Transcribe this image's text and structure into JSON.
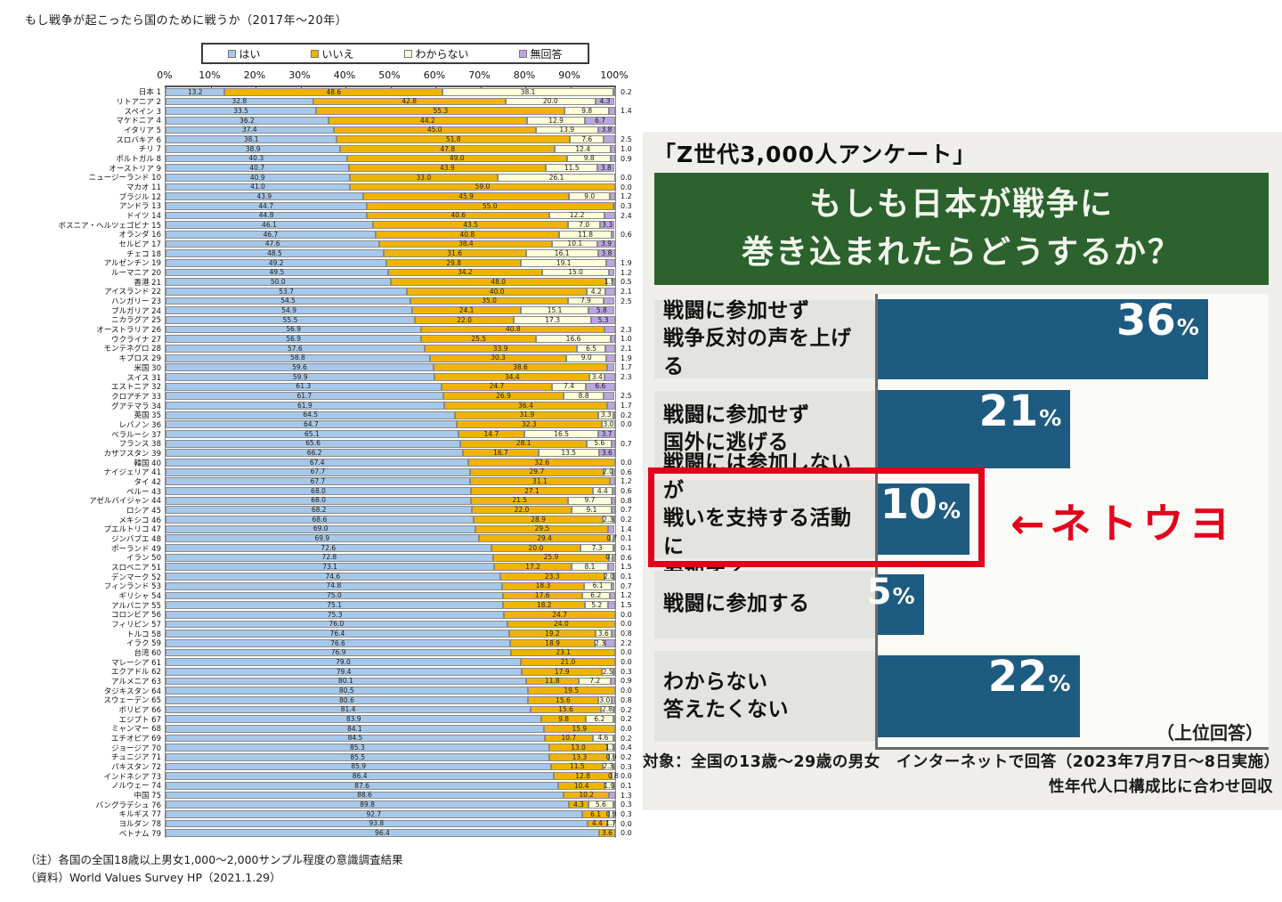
{
  "colors": {
    "yes": "#a6c8ea",
    "no": "#f0b400",
    "dk": "#ffffd9",
    "na": "#bca6e2",
    "segment_border": "#8a8a8a",
    "right_bar": "#1e5b80",
    "right_title_bg": "#2b622e",
    "right_title_text": "#f3f6ec",
    "highlight_red": "#e3001b",
    "label_block_bg": "#e3e3df",
    "bar_area_bg": "#fafaf7"
  },
  "chart_data": [
    {
      "id": "wvs-fight-for-country",
      "type": "bar",
      "orientation": "horizontal-stacked",
      "title": "もし戦争が起こったら国のために戦うか（2017年～20年）",
      "legend": [
        "はい",
        "いいえ",
        "わからない",
        "無回答"
      ],
      "legend_position": "top",
      "xlim": [
        0,
        100
      ],
      "x_ticks": [
        "0%",
        "10%",
        "20%",
        "30%",
        "40%",
        "50%",
        "60%",
        "70%",
        "80%",
        "90%",
        "100%"
      ],
      "columns": [
        "country",
        "rank",
        "yes",
        "no",
        "dk",
        "na_inside",
        "right_value"
      ],
      "rows": [
        [
          "日本",
          1,
          13.2,
          48.6,
          38.1,
          null,
          "0.2"
        ],
        [
          "リトアニア",
          2,
          32.8,
          42.8,
          20.0,
          4.3,
          ""
        ],
        [
          "スペイン",
          3,
          33.5,
          55.3,
          9.8,
          null,
          "1.4"
        ],
        [
          "マケドニア",
          4,
          36.2,
          44.2,
          12.9,
          6.7,
          ""
        ],
        [
          "イタリア",
          5,
          37.4,
          45.0,
          13.9,
          3.8,
          ""
        ],
        [
          "スロバキア",
          6,
          38.1,
          51.8,
          7.6,
          null,
          "2.5"
        ],
        [
          "チリ",
          7,
          38.9,
          47.8,
          12.4,
          null,
          "1.0"
        ],
        [
          "ポルトガル",
          8,
          40.3,
          49.0,
          9.8,
          null,
          "0.9"
        ],
        [
          "オーストリア",
          9,
          40.7,
          43.9,
          11.5,
          3.8,
          ""
        ],
        [
          "ニュージーランド",
          10,
          40.9,
          33.0,
          26.1,
          null,
          "0.0"
        ],
        [
          "マカオ",
          11,
          41.0,
          59.0,
          null,
          null,
          "0.0"
        ],
        [
          "ブラジル",
          12,
          43.9,
          45.9,
          9.0,
          null,
          "1.2"
        ],
        [
          "アンドラ",
          13,
          44.7,
          55.0,
          null,
          null,
          "0.3"
        ],
        [
          "ドイツ",
          14,
          44.8,
          40.6,
          12.2,
          null,
          "2.4"
        ],
        [
          "ボスニア・ヘルツェゴビナ",
          15,
          46.1,
          43.5,
          7.0,
          3.3,
          ""
        ],
        [
          "オランダ",
          16,
          46.7,
          40.8,
          11.8,
          null,
          "0.6"
        ],
        [
          "セルビア",
          17,
          47.6,
          38.4,
          10.1,
          3.9,
          ""
        ],
        [
          "チェコ",
          18,
          48.5,
          31.6,
          16.1,
          3.8,
          ""
        ],
        [
          "アルゼンチン",
          19,
          49.2,
          29.8,
          19.1,
          null,
          "1.9"
        ],
        [
          "ルーマニア",
          20,
          49.5,
          34.2,
          15.0,
          null,
          "1.2"
        ],
        [
          "香港",
          21,
          50.0,
          48.0,
          1.5,
          null,
          "0.5"
        ],
        [
          "アイスランド",
          22,
          53.7,
          40.0,
          4.2,
          null,
          "2.1"
        ],
        [
          "ハンガリー",
          23,
          54.5,
          35.0,
          7.9,
          null,
          "2.5"
        ],
        [
          "ブルガリア",
          24,
          54.9,
          24.1,
          15.1,
          5.8,
          ""
        ],
        [
          "ニカラグア",
          25,
          55.5,
          22.0,
          17.3,
          5.3,
          ""
        ],
        [
          "オーストラリア",
          26,
          56.9,
          40.8,
          null,
          null,
          "2.3"
        ],
        [
          "ウクライナ",
          27,
          56.9,
          25.5,
          16.6,
          null,
          "1.0"
        ],
        [
          "モンテネグロ",
          28,
          57.6,
          33.9,
          6.5,
          null,
          "2.1"
        ],
        [
          "キプロス",
          29,
          58.8,
          30.3,
          9.0,
          null,
          "1.9"
        ],
        [
          "米国",
          30,
          59.6,
          38.6,
          null,
          null,
          "1.7"
        ],
        [
          "スイス",
          31,
          59.9,
          34.4,
          3.4,
          null,
          "2.3"
        ],
        [
          "エストニア",
          32,
          61.3,
          24.7,
          7.4,
          6.6,
          ""
        ],
        [
          "クロアチア",
          33,
          61.7,
          26.9,
          8.8,
          null,
          "2.5"
        ],
        [
          "グアテマラ",
          34,
          61.9,
          36.4,
          null,
          null,
          "1.7"
        ],
        [
          "英国",
          35,
          64.5,
          31.9,
          3.3,
          null,
          "0.2"
        ],
        [
          "レバノン",
          36,
          64.7,
          32.3,
          3.0,
          null,
          "0.0"
        ],
        [
          "ベラルーシ",
          37,
          65.1,
          14.7,
          16.5,
          3.7,
          ""
        ],
        [
          "フランス",
          38,
          65.6,
          28.1,
          5.6,
          null,
          "0.7"
        ],
        [
          "カザフスタン",
          39,
          66.2,
          16.7,
          13.5,
          3.6,
          ""
        ],
        [
          "韓国",
          40,
          67.4,
          32.6,
          null,
          null,
          "0.0"
        ],
        [
          "ナイジェリア",
          41,
          67.7,
          29.7,
          2.0,
          null,
          "0.6"
        ],
        [
          "タイ",
          42,
          67.7,
          31.1,
          null,
          null,
          "1.2"
        ],
        [
          "ペルー",
          43,
          68.0,
          27.1,
          4.4,
          null,
          "0.6"
        ],
        [
          "アゼルバイジャン",
          44,
          68.0,
          21.5,
          9.7,
          null,
          "0.8"
        ],
        [
          "ロシア",
          45,
          68.2,
          22.0,
          9.1,
          null,
          "0.7"
        ],
        [
          "メキシコ",
          46,
          68.6,
          28.9,
          2.3,
          null,
          "0.2"
        ],
        [
          "プエルトリコ",
          47,
          69.0,
          29.5,
          null,
          null,
          "1.4"
        ],
        [
          "ジンバブエ",
          48,
          69.9,
          29.4,
          0.7,
          null,
          "0.1"
        ],
        [
          "ポーランド",
          49,
          72.6,
          20.0,
          7.3,
          null,
          "0.1"
        ],
        [
          "イラン",
          50,
          72.8,
          25.9,
          0.7,
          null,
          "0.6"
        ],
        [
          "スロベニア",
          51,
          73.1,
          17.2,
          8.1,
          null,
          "1.5"
        ],
        [
          "デンマーク",
          52,
          74.6,
          23.3,
          2.0,
          null,
          "0.1"
        ],
        [
          "フィンランド",
          53,
          74.8,
          18.3,
          6.1,
          null,
          "0.7"
        ],
        [
          "ギリシャ",
          54,
          75.0,
          17.6,
          6.2,
          null,
          "1.2"
        ],
        [
          "アルバニア",
          55,
          75.1,
          18.2,
          5.2,
          null,
          "1.5"
        ],
        [
          "コロンビア",
          56,
          75.3,
          24.7,
          null,
          null,
          "0.0"
        ],
        [
          "フィリピン",
          57,
          76.0,
          24.0,
          null,
          null,
          "0.0"
        ],
        [
          "トルコ",
          58,
          76.4,
          19.2,
          3.6,
          null,
          "0.8"
        ],
        [
          "イラク",
          59,
          76.6,
          18.9,
          2.3,
          null,
          "2.2"
        ],
        [
          "台湾",
          60,
          76.9,
          23.1,
          null,
          null,
          "0.0"
        ],
        [
          "マレーシア",
          61,
          79.0,
          21.0,
          null,
          null,
          "0.0"
        ],
        [
          "エクアドル",
          62,
          79.4,
          17.9,
          2.5,
          null,
          "0.3"
        ],
        [
          "アルメニア",
          63,
          80.1,
          11.8,
          7.2,
          null,
          "0.9"
        ],
        [
          "タジキスタン",
          64,
          80.5,
          19.5,
          null,
          null,
          "0.0"
        ],
        [
          "スウェーデン",
          65,
          80.6,
          15.6,
          3.0,
          null,
          "0.8"
        ],
        [
          "ボリビア",
          66,
          81.4,
          15.6,
          2.8,
          null,
          "0.2"
        ],
        [
          "エジプト",
          67,
          83.9,
          9.8,
          6.2,
          null,
          "0.2"
        ],
        [
          "ミャンマー",
          68,
          84.1,
          15.9,
          null,
          null,
          "0.0"
        ],
        [
          "エチオピア",
          69,
          84.5,
          10.7,
          4.6,
          null,
          "0.2"
        ],
        [
          "ジョージア",
          70,
          85.3,
          13.0,
          1.3,
          null,
          "0.4"
        ],
        [
          "チュニジア",
          71,
          85.5,
          13.3,
          0.9,
          null,
          "0.2"
        ],
        [
          "パキスタン",
          72,
          85.9,
          11.5,
          2.3,
          null,
          "0.3"
        ],
        [
          "インドネシア",
          73,
          86.4,
          12.8,
          0.8,
          null,
          "0.0"
        ],
        [
          "ノルウェー",
          74,
          87.6,
          10.4,
          1.9,
          null,
          "0.1"
        ],
        [
          "中国",
          75,
          88.6,
          10.2,
          null,
          null,
          "1.3"
        ],
        [
          "バングラデシュ",
          76,
          89.8,
          4.3,
          5.6,
          null,
          "0.3"
        ],
        [
          "キルギス",
          77,
          92.7,
          6.1,
          0.9,
          null,
          "0.3"
        ],
        [
          "ヨルダン",
          78,
          93.8,
          4.4,
          1.7,
          null,
          "0.0"
        ],
        [
          "ベトナム",
          79,
          96.4,
          3.6,
          null,
          null,
          "0.0"
        ]
      ],
      "notes": [
        "（注）各国の全国18歳以上男女1,000～2,000サンプル程度の意識調査結果",
        "（資料）World Values Survey HP（2021.1.29）"
      ]
    },
    {
      "id": "gen-z-survey",
      "type": "bar",
      "orientation": "horizontal",
      "tag": "「Z世代3,000人アンケート」",
      "title_lines": [
        "もしも日本が戦争に",
        "巻き込まれたらどうするか？"
      ],
      "unit": "%",
      "items": [
        {
          "label_lines": [
            "戦闘に参加せず",
            "戦争反対の声を上げる"
          ],
          "value": 36,
          "highlight": false
        },
        {
          "label_lines": [
            "戦闘に参加せず",
            "国外に逃げる"
          ],
          "value": 21,
          "highlight": false
        },
        {
          "label_lines": [
            "戦闘には参加しないが",
            "戦いを支持する活動に",
            "参加する"
          ],
          "value": 10,
          "highlight": true
        },
        {
          "label_lines": [
            "戦闘に参加する"
          ],
          "value": 5,
          "highlight": false
        },
        {
          "label_lines": [
            "わからない",
            "答えたくない"
          ],
          "value": 22,
          "highlight": false
        }
      ],
      "annotation": "←ネトウヨ",
      "note": "（上位回答）",
      "footnotes": [
        "対象：全国の13歳～29歳の男女　インターネットで回答（2023年7月7日～8日実施）",
        "性年代人口構成比に合わせ回収"
      ]
    }
  ]
}
